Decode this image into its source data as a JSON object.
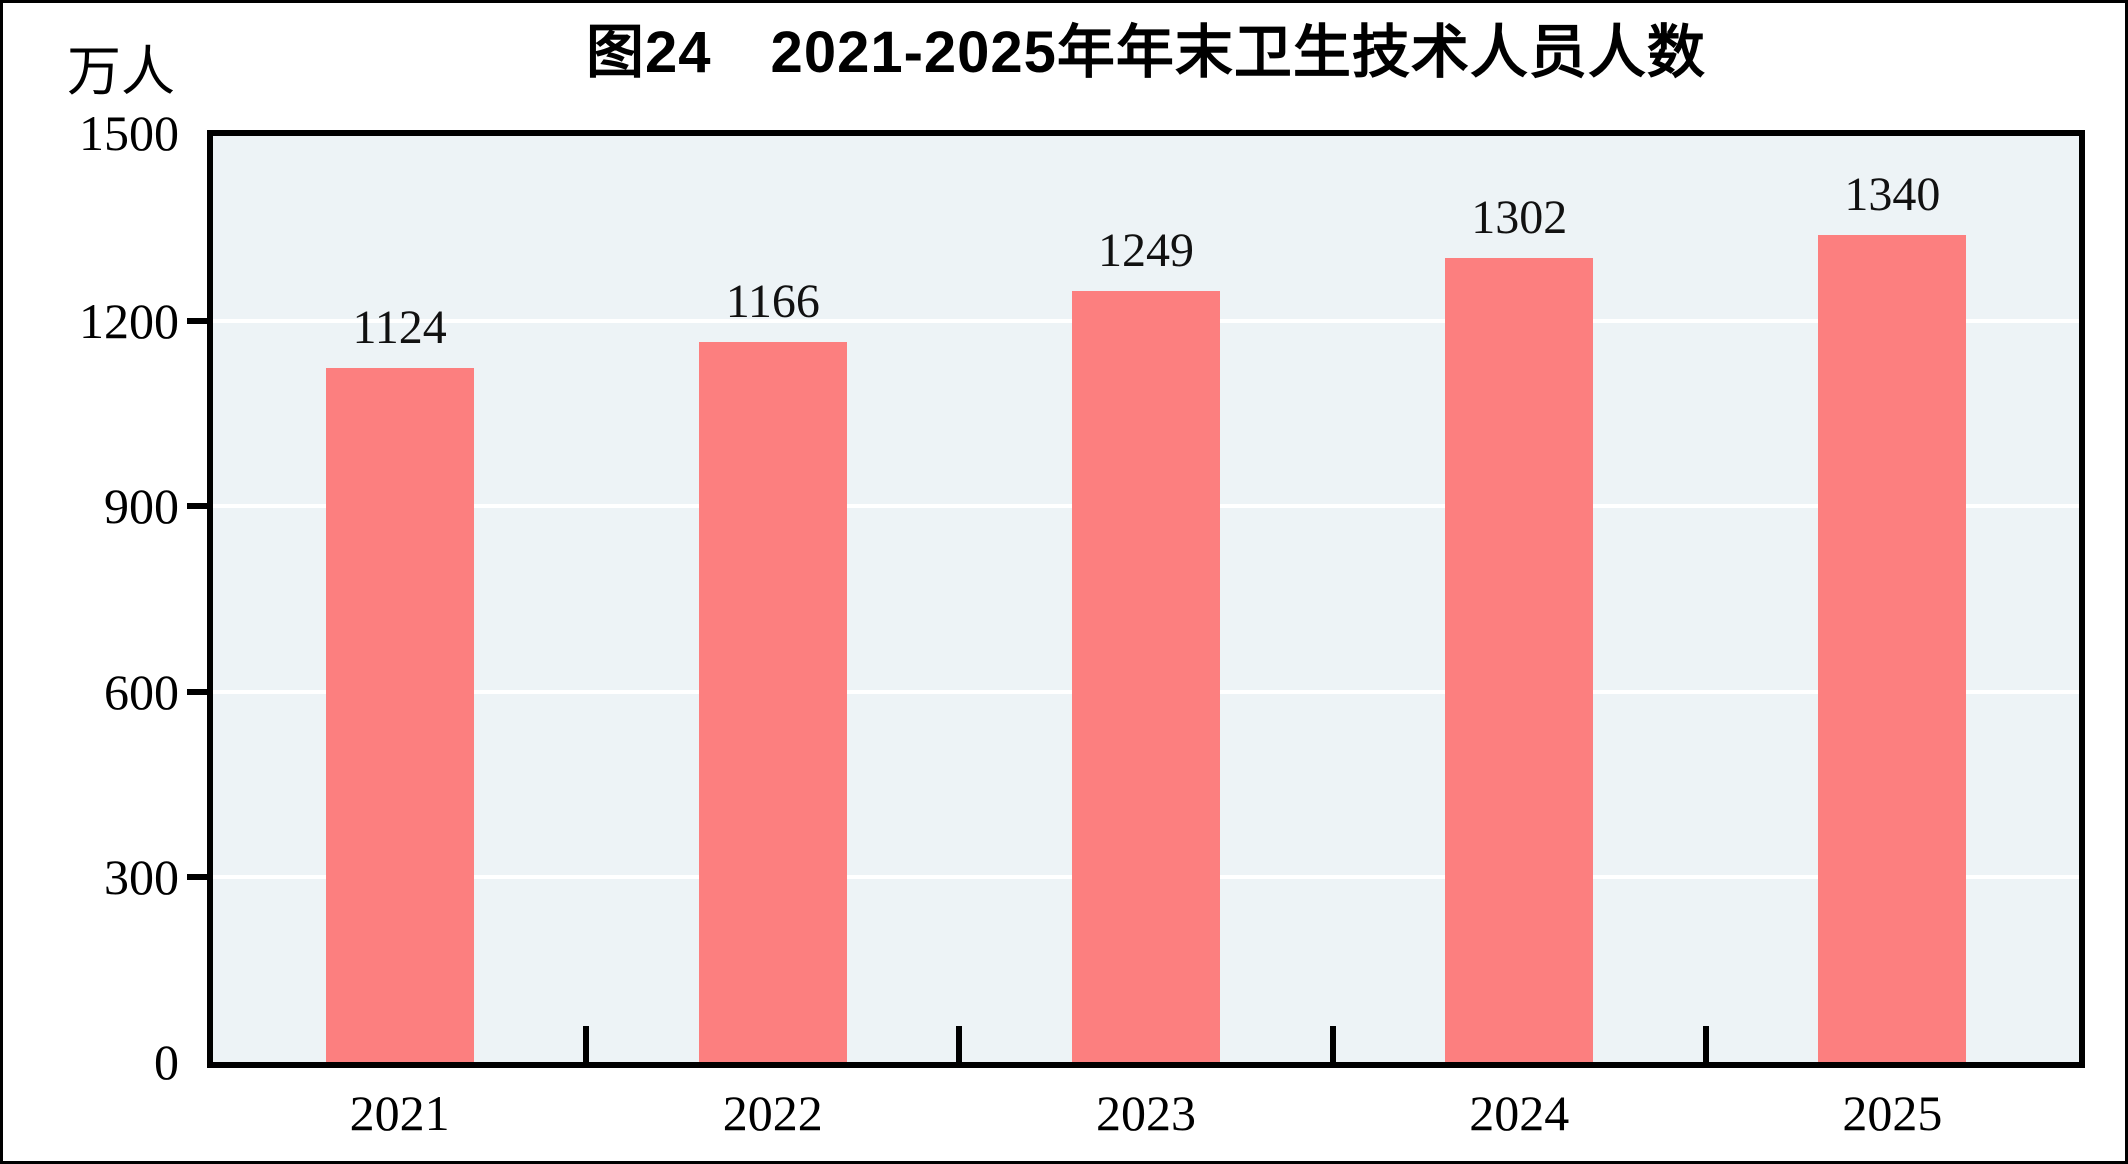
{
  "chart_data": {
    "type": "bar",
    "title": "图24　2021-2025年年末卫生技术人员人数",
    "unit_label": "万人",
    "categories": [
      "2021",
      "2022",
      "2023",
      "2024",
      "2025"
    ],
    "values": [
      1124,
      1166,
      1249,
      1302,
      1340
    ],
    "value_labels": [
      "1124",
      "1166",
      "1249",
      "1302",
      "1340"
    ],
    "series_name": "年末卫生技术人员人数",
    "xlabel": "",
    "ylabel": "万人",
    "ylim": [
      0,
      1500
    ],
    "yticks": [
      0,
      300,
      600,
      900,
      1200,
      1500
    ],
    "gridline_values": [
      300,
      600,
      900,
      1200
    ],
    "grid_on": true,
    "legend": "none",
    "colors": {
      "bar": "#FC7F7F",
      "plot_background": "#EDF3F6",
      "gridline": "#FFFFFF",
      "axis": "#000000",
      "label_text": "#111111"
    }
  }
}
